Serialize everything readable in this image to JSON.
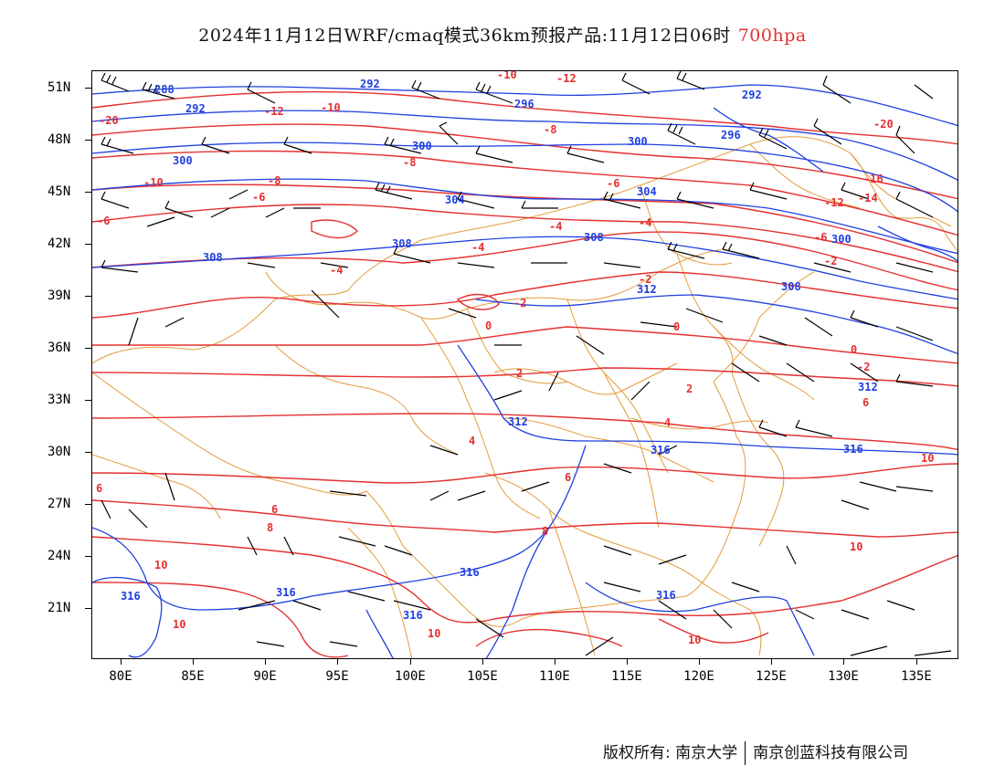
{
  "title": {
    "main": "2024年11月12日WRF/cmaq模式36km预报产品:11月12日06时",
    "level": "700hpa"
  },
  "axes": {
    "lat_labels": [
      "51N",
      "48N",
      "45N",
      "42N",
      "39N",
      "36N",
      "33N",
      "30N",
      "27N",
      "24N",
      "21N"
    ],
    "lon_labels": [
      "80E",
      "85E",
      "90E",
      "95E",
      "100E",
      "105E",
      "110E",
      "115E",
      "120E",
      "125E",
      "130E",
      "135E"
    ]
  },
  "map": {
    "lon_range": [
      78,
      138
    ],
    "lat_range": [
      17.5,
      52.5
    ],
    "temperature_isotherm_labels": [
      "-10",
      "-12",
      "-20",
      "-12",
      "-10",
      "-8",
      "-20",
      "-16",
      "-12",
      "-14",
      "-10",
      "-8",
      "-6",
      "-6",
      "-4",
      "-4",
      "-6",
      "-4",
      "-2",
      "-2",
      "-4",
      "-6",
      "-8",
      "-2",
      "0",
      "0",
      "0",
      "-2",
      "2",
      "2",
      "4",
      "4",
      "6",
      "6",
      "6",
      "6",
      "8",
      "8",
      "10",
      "10",
      "10",
      "10",
      "10",
      "10"
    ],
    "height_contour_labels": [
      "288",
      "292",
      "292",
      "296",
      "296",
      "292",
      "300",
      "300",
      "300",
      "304",
      "304",
      "308",
      "308",
      "308",
      "308",
      "312",
      "312",
      "312",
      "316",
      "316",
      "316",
      "316",
      "316",
      "316",
      "316",
      "300"
    ],
    "colors": {
      "temperature": "#e53030",
      "height": "#1f3fe0",
      "boundaries": "#e39b3c",
      "wind_barbs": "#000000"
    }
  },
  "footer": {
    "left": "版权所有: 南京大学",
    "right": "南京创蓝科技有限公司"
  }
}
